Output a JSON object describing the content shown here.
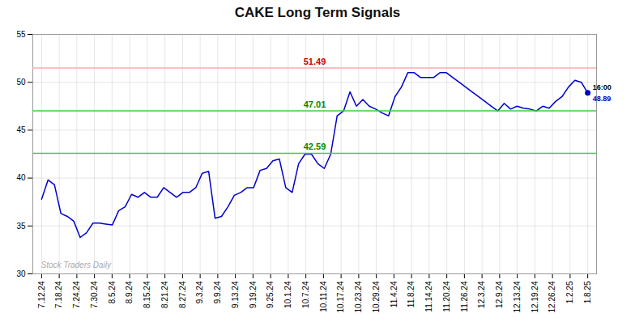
{
  "chart_data": {
    "type": "line",
    "title": "CAKE Long Term Signals",
    "color": "#0000cc",
    "x": [
      0,
      0.3647,
      0.7294,
      1.0941,
      1.4588,
      1.8235,
      2.1882,
      2.5529,
      2.9176,
      3.2824,
      3.6471,
      4.0118,
      4.3765,
      4.7412,
      5.1059,
      5.4706,
      5.8353,
      6.2,
      6.5647,
      6.9294,
      7.2941,
      7.6588,
      8.0235,
      8.3882,
      8.7529,
      9.1176,
      9.4824,
      9.8471,
      10.2118,
      10.5765,
      10.9412,
      11.3059,
      11.6706,
      12.0353,
      12.4,
      12.7647,
      13.1294,
      13.4941,
      13.8588,
      14.2235,
      14.5882,
      14.9529,
      15.3176,
      15.6824,
      16.0471,
      16.4118,
      16.7765,
      17.1412,
      17.5059,
      17.8706,
      18.2353,
      18.6,
      18.9647,
      19.3294,
      19.6941,
      20.0588,
      20.4235,
      20.7882,
      21.1529,
      21.5176,
      21.8824,
      22.2471,
      22.6118,
      22.9765,
      23.3412,
      23.7059,
      24.0706,
      24.4353,
      24.8,
      25.1647,
      25.5294,
      25.8941,
      26.2588,
      26.6235,
      26.9882,
      27.3529,
      27.7176,
      28.0824,
      28.4471,
      28.8118,
      29.1765,
      29.5412,
      29.9059,
      30.2706,
      30.6353,
      31
    ],
    "values": [
      37.8,
      39.8,
      39.3,
      36.3,
      36.0,
      35.5,
      33.8,
      34.3,
      35.3,
      35.3,
      35.2,
      35.1,
      36.6,
      37.0,
      38.3,
      38.0,
      38.5,
      38.0,
      38.0,
      39.0,
      38.5,
      38.0,
      38.5,
      38.5,
      39.0,
      40.5,
      40.7,
      35.8,
      36.0,
      37.0,
      38.2,
      38.5,
      39.0,
      39.0,
      40.8,
      41.0,
      41.8,
      42.0,
      39.0,
      38.5,
      41.5,
      42.5,
      42.5,
      41.5,
      41.0,
      42.5,
      46.5,
      47.0,
      49.0,
      47.5,
      48.2,
      47.5,
      47.2,
      46.8,
      46.5,
      48.5,
      49.5,
      51.0,
      51.0,
      50.5,
      50.5,
      50.5,
      51.0,
      51.0,
      50.5,
      50.0,
      49.5,
      49.0,
      48.5,
      48.0,
      47.5,
      47.0,
      47.8,
      47.2,
      47.5,
      47.3,
      47.2,
      47.0,
      47.5,
      47.3,
      48.0,
      48.5,
      49.5,
      50.2,
      50.0,
      48.89
    ],
    "xlim": [
      -0.5,
      31.5
    ],
    "xticks": [
      {
        "value": 0,
        "label": "7.12.24"
      },
      {
        "value": 1,
        "label": "7.18.24"
      },
      {
        "value": 2,
        "label": "7.24.24"
      },
      {
        "value": 3,
        "label": "7.30.24"
      },
      {
        "value": 4,
        "label": "8.5.24"
      },
      {
        "value": 5,
        "label": "8.9.24"
      },
      {
        "value": 6,
        "label": "8.15.24"
      },
      {
        "value": 7,
        "label": "8.21.24"
      },
      {
        "value": 8,
        "label": "8.27.24"
      },
      {
        "value": 9,
        "label": "9.3.24"
      },
      {
        "value": 10,
        "label": "9.9.24"
      },
      {
        "value": 11,
        "label": "9.13.24"
      },
      {
        "value": 12,
        "label": "9.19.24"
      },
      {
        "value": 13,
        "label": "9.25.24"
      },
      {
        "value": 14,
        "label": "10.1.24"
      },
      {
        "value": 15,
        "label": "10.7.24"
      },
      {
        "value": 16,
        "label": "10.11.24"
      },
      {
        "value": 17,
        "label": "10.17.24"
      },
      {
        "value": 18,
        "label": "10.23.24"
      },
      {
        "value": 19,
        "label": "10.29.24"
      },
      {
        "value": 20,
        "label": "11.4.24"
      },
      {
        "value": 21,
        "label": "11.8.24"
      },
      {
        "value": 22,
        "label": "11.14.24"
      },
      {
        "value": 23,
        "label": "11.20.24"
      },
      {
        "value": 24,
        "label": "11.26.24"
      },
      {
        "value": 25,
        "label": "12.3.24"
      },
      {
        "value": 26,
        "label": "12.9.24"
      },
      {
        "value": 27,
        "label": "12.13.24"
      },
      {
        "value": 28,
        "label": "12.19.24"
      },
      {
        "value": 29,
        "label": "12.26.24"
      },
      {
        "value": 30,
        "label": "1.2.25"
      },
      {
        "value": 31,
        "label": "1.8.25"
      }
    ],
    "ylim": [
      30,
      55
    ],
    "yticks": [
      30,
      35,
      40,
      45,
      50,
      55
    ],
    "grid": true,
    "reference_lines": [
      {
        "value": 51.49,
        "label": "51.49",
        "color": "#ffaaaa",
        "label_color": "#cc0000"
      },
      {
        "value": 47.01,
        "label": "47.01",
        "color": "#44cc44",
        "label_color": "#008800"
      },
      {
        "value": 42.59,
        "label": "42.59",
        "color": "#44cc44",
        "label_color": "#008800"
      }
    ],
    "last_point": {
      "x": 31,
      "value": 48.89,
      "time_label": "16:00",
      "color": "#0000cc"
    },
    "watermark": "Stock Traders Daily"
  }
}
